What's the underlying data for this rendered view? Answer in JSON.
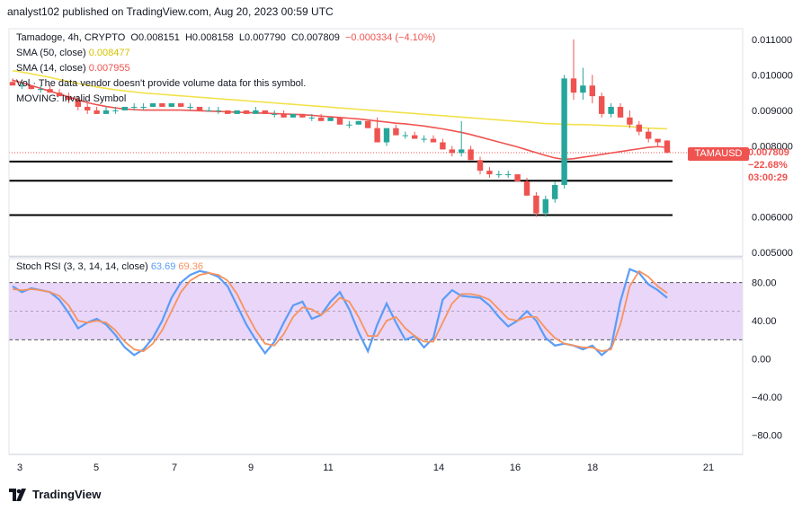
{
  "header": {
    "published": "analyst102 published on TradingView.com, Aug 20, 2023 00:59 UTC"
  },
  "legend": {
    "symbol": "Tamadoge, 4h, CRYPTO",
    "open": "O0.008151",
    "high": "H0.008158",
    "low": "L0.007790",
    "close": "C0.007809",
    "change": "−0.000334 (−4.10%)",
    "sma50_label": "SMA (50, close)",
    "sma50_value": "0.008477",
    "sma14_label": "SMA (14, close)",
    "sma14_value": "0.007955",
    "vol_note": "Vol · The data vendor doesn't provide volume data for this symbol.",
    "moving_note": "MOVING: Invalid Symbol"
  },
  "price_badge": {
    "ticker": "TAMAUSD",
    "price": "0.007809",
    "change": "−22.68%",
    "countdown": "03:00:29"
  },
  "stoch": {
    "label": "Stoch RSI (3, 3, 14, 14, close)",
    "k_value": "63.69",
    "d_value": "69.36"
  },
  "colors": {
    "sma50": "#f2e14a",
    "sma14": "#ef5350",
    "up": "#26a69a",
    "down": "#ef5350",
    "k_line": "#5b9cf6",
    "d_line": "#f7935e",
    "band": "#e1c8f5"
  },
  "footer": {
    "brand": "TradingView"
  },
  "chart_data": [
    {
      "type": "candlestick",
      "title": "Tamadoge, 4h, CRYPTO",
      "x_ticks": [
        "3",
        "5",
        "7",
        "9",
        "11",
        "14",
        "16",
        "18",
        "21"
      ],
      "y_ticks": [
        "0.011000",
        "0.010000",
        "0.009000",
        "0.008000",
        "0.006000",
        "0.005000"
      ],
      "ylim": [
        0.0049,
        0.0113
      ],
      "horizontal_levels": [
        0.00756,
        0.00702,
        0.00605
      ],
      "candles": [
        [
          0.0098,
          0.0099,
          0.0097,
          0.0097
        ],
        [
          0.0097,
          0.0098,
          0.0096,
          0.0097
        ],
        [
          0.0097,
          0.0097,
          0.0096,
          0.0096
        ],
        [
          0.0096,
          0.0097,
          0.0095,
          0.0096
        ],
        [
          0.0096,
          0.0097,
          0.0095,
          0.0095
        ],
        [
          0.0095,
          0.0096,
          0.0094,
          0.0094
        ],
        [
          0.0094,
          0.0095,
          0.0092,
          0.0093
        ],
        [
          0.0093,
          0.0094,
          0.009,
          0.0091
        ],
        [
          0.0091,
          0.0092,
          0.0089,
          0.009
        ],
        [
          0.009,
          0.0091,
          0.0089,
          0.0089
        ],
        [
          0.0089,
          0.0091,
          0.0089,
          0.009
        ],
        [
          0.009,
          0.0091,
          0.0089,
          0.009
        ],
        [
          0.009,
          0.0091,
          0.009,
          0.0091
        ],
        [
          0.0091,
          0.0092,
          0.009,
          0.0091
        ],
        [
          0.0091,
          0.0092,
          0.009,
          0.0091
        ],
        [
          0.0091,
          0.0092,
          0.0091,
          0.0092
        ],
        [
          0.0092,
          0.0092,
          0.0091,
          0.0091
        ],
        [
          0.0091,
          0.0092,
          0.0091,
          0.0092
        ],
        [
          0.0092,
          0.0092,
          0.0091,
          0.0091
        ],
        [
          0.0091,
          0.0092,
          0.009,
          0.0091
        ],
        [
          0.0091,
          0.0091,
          0.009,
          0.009
        ],
        [
          0.009,
          0.0091,
          0.009,
          0.009
        ],
        [
          0.009,
          0.0091,
          0.0089,
          0.009
        ],
        [
          0.009,
          0.009,
          0.0089,
          0.0089
        ],
        [
          0.0089,
          0.009,
          0.0089,
          0.009
        ],
        [
          0.009,
          0.009,
          0.0089,
          0.0089
        ],
        [
          0.0089,
          0.0091,
          0.0089,
          0.009
        ],
        [
          0.009,
          0.009,
          0.0089,
          0.0089
        ],
        [
          0.0089,
          0.009,
          0.0088,
          0.0089
        ],
        [
          0.0089,
          0.009,
          0.0088,
          0.0088
        ],
        [
          0.0088,
          0.0089,
          0.0088,
          0.0089
        ],
        [
          0.0089,
          0.0089,
          0.0088,
          0.0088
        ],
        [
          0.0088,
          0.0089,
          0.0087,
          0.0088
        ],
        [
          0.0088,
          0.0089,
          0.0087,
          0.0087
        ],
        [
          0.0087,
          0.0088,
          0.0087,
          0.0088
        ],
        [
          0.0088,
          0.0088,
          0.0086,
          0.0086
        ],
        [
          0.0086,
          0.0087,
          0.0085,
          0.0086
        ],
        [
          0.0086,
          0.0087,
          0.0086,
          0.0087
        ],
        [
          0.0087,
          0.0087,
          0.0085,
          0.0085
        ],
        [
          0.0085,
          0.0088,
          0.0081,
          0.0081
        ],
        [
          0.0081,
          0.0085,
          0.008,
          0.0085
        ],
        [
          0.0085,
          0.0086,
          0.0083,
          0.0083
        ],
        [
          0.0083,
          0.0084,
          0.0082,
          0.0083
        ],
        [
          0.0083,
          0.0084,
          0.0082,
          0.0082
        ],
        [
          0.0082,
          0.0083,
          0.0081,
          0.0082
        ],
        [
          0.0082,
          0.0083,
          0.0081,
          0.0081
        ],
        [
          0.0081,
          0.0082,
          0.0079,
          0.0079
        ],
        [
          0.0079,
          0.008,
          0.0077,
          0.0078
        ],
        [
          0.0078,
          0.0087,
          0.0077,
          0.0079
        ],
        [
          0.0079,
          0.008,
          0.0076,
          0.0076
        ],
        [
          0.0076,
          0.0077,
          0.0072,
          0.0073
        ],
        [
          0.0073,
          0.0074,
          0.0071,
          0.0072
        ],
        [
          0.0072,
          0.0073,
          0.0071,
          0.0072
        ],
        [
          0.0072,
          0.0073,
          0.0071,
          0.0072
        ],
        [
          0.0072,
          0.0072,
          0.007,
          0.007
        ],
        [
          0.007,
          0.0071,
          0.0066,
          0.0066
        ],
        [
          0.0066,
          0.0067,
          0.006,
          0.0061
        ],
        [
          0.0061,
          0.0066,
          0.006,
          0.0065
        ],
        [
          0.0065,
          0.007,
          0.0064,
          0.0069
        ],
        [
          0.0069,
          0.01,
          0.0068,
          0.0099
        ],
        [
          0.0099,
          0.011,
          0.0093,
          0.0095
        ],
        [
          0.0095,
          0.0102,
          0.0093,
          0.0097
        ],
        [
          0.0097,
          0.01,
          0.0092,
          0.0094
        ],
        [
          0.0094,
          0.0095,
          0.0088,
          0.0089
        ],
        [
          0.0089,
          0.0092,
          0.0088,
          0.0091
        ],
        [
          0.0091,
          0.0092,
          0.0088,
          0.0088
        ],
        [
          0.0088,
          0.009,
          0.0085,
          0.0086
        ],
        [
          0.0086,
          0.0087,
          0.0083,
          0.0084
        ],
        [
          0.0084,
          0.0085,
          0.0081,
          0.0082
        ],
        [
          0.0082,
          0.0082,
          0.008,
          0.0081
        ],
        [
          0.00815,
          0.00816,
          0.00779,
          0.00781
        ]
      ],
      "sma50": [
        0.01012,
        0.01008,
        0.01003,
        0.00998,
        0.00993,
        0.00987,
        0.00981,
        0.00976,
        0.00971,
        0.00966,
        0.00962,
        0.00958,
        0.00955,
        0.00952,
        0.00949,
        0.00947,
        0.00945,
        0.00943,
        0.00941,
        0.00939,
        0.00937,
        0.00935,
        0.00933,
        0.00931,
        0.00929,
        0.00927,
        0.00925,
        0.00923,
        0.00921,
        0.00919,
        0.00917,
        0.00915,
        0.00913,
        0.00911,
        0.00909,
        0.00907,
        0.00905,
        0.00903,
        0.00901,
        0.00899,
        0.00897,
        0.00895,
        0.00893,
        0.00891,
        0.00889,
        0.00887,
        0.00885,
        0.00883,
        0.00881,
        0.00879,
        0.00877,
        0.00875,
        0.00873,
        0.00871,
        0.00869,
        0.00867,
        0.00865,
        0.00863,
        0.00862,
        0.00861,
        0.0086,
        0.0086,
        0.00859,
        0.00858,
        0.00857,
        0.00856,
        0.00855,
        0.00852,
        0.0085,
        0.00849,
        0.00848
      ],
      "sma14": [
        0.00985,
        0.00978,
        0.0097,
        0.00962,
        0.00954,
        0.00946,
        0.00938,
        0.0093,
        0.00922,
        0.00916,
        0.00911,
        0.00907,
        0.00904,
        0.00902,
        0.00901,
        0.00901,
        0.00901,
        0.00901,
        0.00901,
        0.009,
        0.00899,
        0.00898,
        0.00897,
        0.00896,
        0.00895,
        0.00894,
        0.00893,
        0.00892,
        0.00891,
        0.0089,
        0.00889,
        0.00888,
        0.00886,
        0.00884,
        0.00882,
        0.0088,
        0.00878,
        0.00876,
        0.00873,
        0.0087,
        0.00867,
        0.00864,
        0.00862,
        0.00859,
        0.00856,
        0.00852,
        0.00848,
        0.00843,
        0.00838,
        0.00832,
        0.00825,
        0.00818,
        0.00811,
        0.00804,
        0.00797,
        0.00789,
        0.00781,
        0.00773,
        0.00766,
        0.00762,
        0.00764,
        0.00768,
        0.00772,
        0.00776,
        0.0078,
        0.00784,
        0.00788,
        0.00792,
        0.00796,
        0.00798,
        0.00796
      ]
    },
    {
      "type": "line",
      "title": "Stoch RSI (3, 3, 14, 14, close)",
      "y_ticks": [
        "80.00",
        "40.00",
        "0.00",
        "−40.00",
        "−80.00"
      ],
      "ylim": [
        -100,
        105
      ],
      "band": [
        20,
        80
      ],
      "midline": 50,
      "series": [
        {
          "name": "K",
          "values": [
            76,
            70,
            74,
            72,
            70,
            62,
            48,
            32,
            38,
            42,
            36,
            25,
            12,
            4,
            10,
            22,
            40,
            64,
            80,
            88,
            92,
            90,
            86,
            76,
            56,
            36,
            20,
            6,
            18,
            38,
            56,
            60,
            42,
            46,
            60,
            70,
            52,
            28,
            8,
            36,
            58,
            38,
            20,
            24,
            12,
            22,
            62,
            72,
            66,
            65,
            64,
            56,
            44,
            34,
            40,
            50,
            40,
            22,
            14,
            16,
            14,
            10,
            14,
            4,
            12,
            60,
            94,
            90,
            78,
            72,
            64
          ]
        },
        {
          "name": "D",
          "values": [
            73,
            72,
            73,
            72,
            70,
            66,
            56,
            40,
            38,
            40,
            38,
            30,
            18,
            10,
            8,
            16,
            30,
            50,
            70,
            82,
            88,
            90,
            88,
            82,
            68,
            48,
            30,
            16,
            14,
            26,
            44,
            54,
            52,
            46,
            54,
            64,
            60,
            44,
            24,
            24,
            40,
            44,
            32,
            24,
            18,
            18,
            38,
            58,
            68,
            68,
            66,
            62,
            52,
            42,
            40,
            44,
            44,
            32,
            22,
            16,
            14,
            12,
            12,
            8,
            10,
            36,
            76,
            92,
            86,
            76,
            69
          ]
        }
      ]
    }
  ]
}
